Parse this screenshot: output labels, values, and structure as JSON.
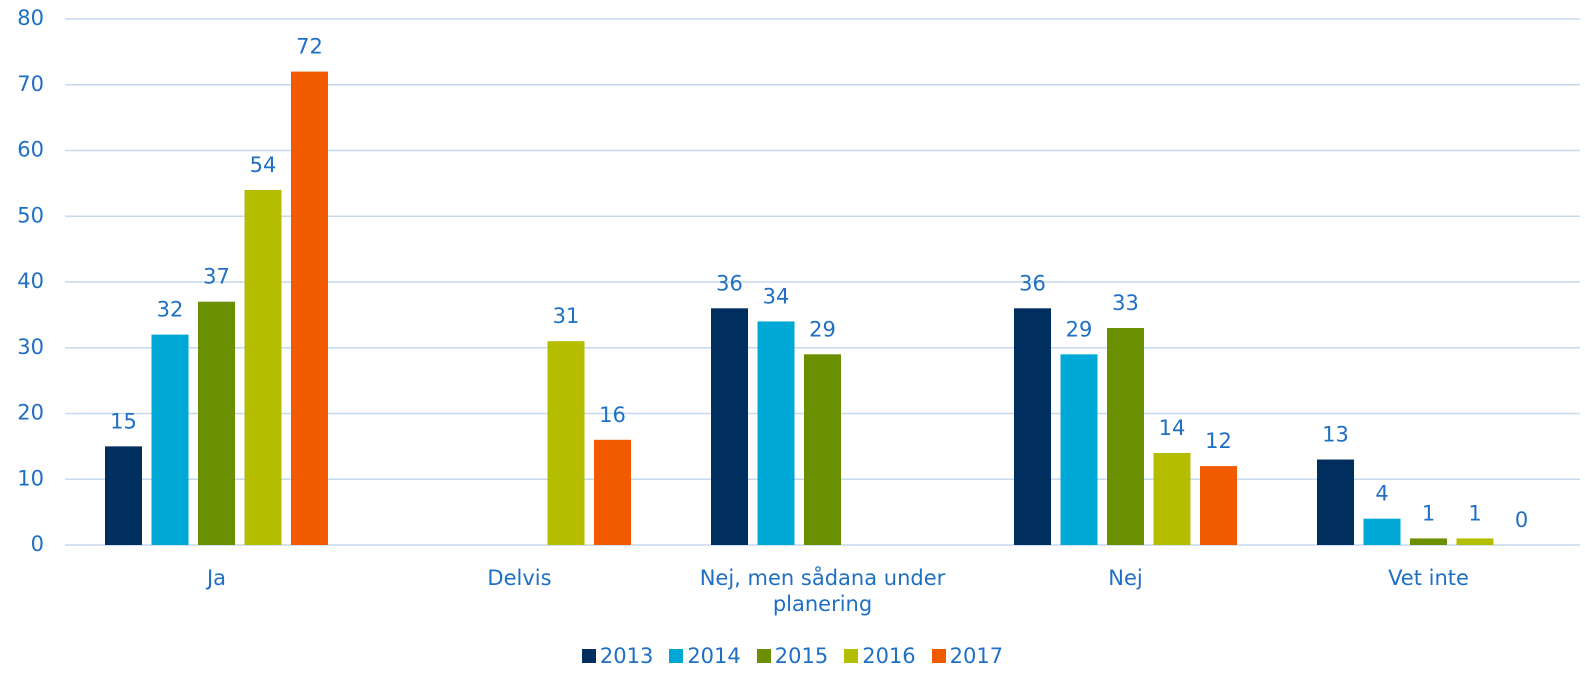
{
  "chart_data": {
    "type": "bar",
    "categories": [
      "Ja",
      "Delvis",
      "Nej, men sådana under planering",
      "Nej",
      "Vet inte"
    ],
    "series": [
      {
        "name": "2013",
        "color": "#002f5f",
        "values": [
          15,
          null,
          36,
          36,
          13
        ]
      },
      {
        "name": "2014",
        "color": "#00a8d6",
        "values": [
          32,
          null,
          34,
          29,
          4
        ]
      },
      {
        "name": "2015",
        "color": "#6a8f00",
        "values": [
          37,
          null,
          29,
          33,
          1
        ]
      },
      {
        "name": "2016",
        "color": "#b5bd00",
        "values": [
          54,
          31,
          null,
          14,
          1
        ]
      },
      {
        "name": "2017",
        "color": "#f25a00",
        "values": [
          72,
          16,
          null,
          12,
          0
        ]
      }
    ],
    "ylim": [
      0,
      80
    ],
    "yticks": [
      0,
      10,
      20,
      30,
      40,
      50,
      60,
      70,
      80
    ],
    "grid": true,
    "legend": "bottom"
  }
}
